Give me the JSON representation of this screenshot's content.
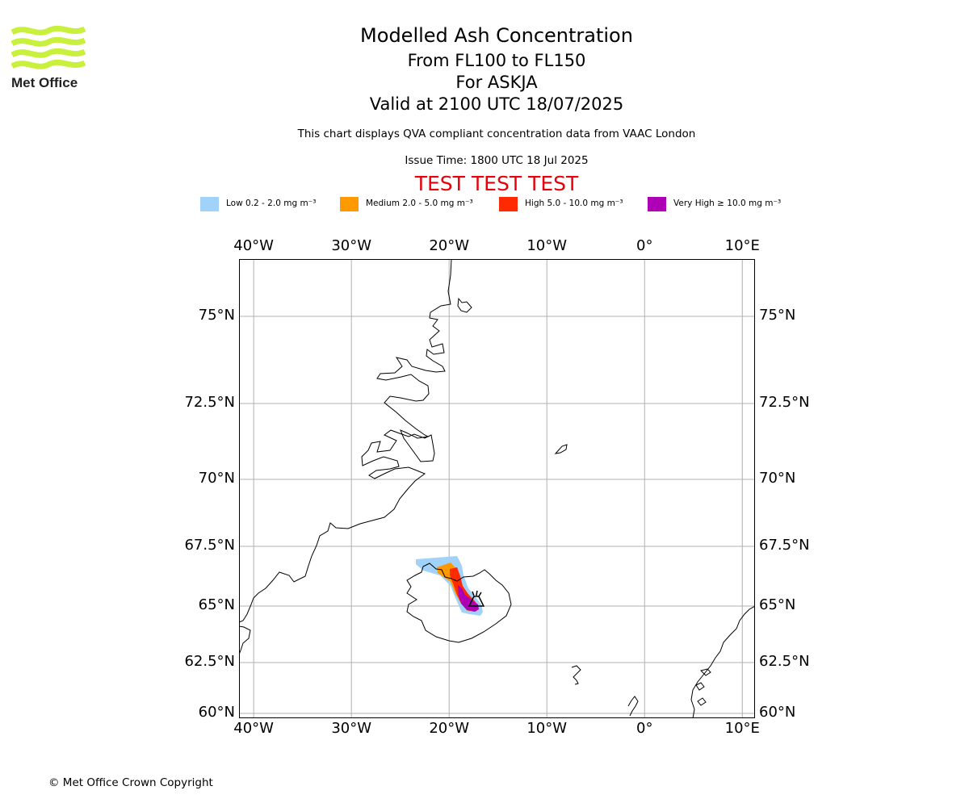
{
  "header": {
    "title": "Modelled Ash Concentration",
    "levels": "From FL100 to FL150",
    "volcano": "For ASKJA",
    "valid": "Valid at 2100 UTC 18/07/2025",
    "compliance_note": "This chart displays QVA compliant concentration data from VAAC London",
    "issue_time": "Issue Time: 1800 UTC 18 Jul 2025",
    "test_banner": "TEST TEST TEST"
  },
  "logo": {
    "text": "Met Office",
    "color": "#c8f03c",
    "icon": "met-office-wave-logo"
  },
  "legend": [
    {
      "label": "Low 0.2 - 2.0 mg m⁻³",
      "color": "#a0d2fa"
    },
    {
      "label": "Medium 2.0 - 5.0 mg m⁻³",
      "color": "#ff9900"
    },
    {
      "label": "High 5.0 - 10.0 mg m⁻³",
      "color": "#ff2a00"
    },
    {
      "label": "Very High  ≥  10.0 mg m⁻³",
      "color": "#ae00b4"
    }
  ],
  "map": {
    "lon_range": [
      -41.5,
      11.3
    ],
    "lat_range": [
      59.9,
      76.9
    ],
    "lon_ticks": [
      {
        "value": -40,
        "label": "40°W"
      },
      {
        "value": -30,
        "label": "30°W"
      },
      {
        "value": -20,
        "label": "20°W"
      },
      {
        "value": -10,
        "label": "10°W"
      },
      {
        "value": 0,
        "label": "0°"
      },
      {
        "value": 10,
        "label": "10°E"
      }
    ],
    "lat_ticks": [
      {
        "value": 75,
        "label": "75°N"
      },
      {
        "value": 72.5,
        "label": "72.5°N"
      },
      {
        "value": 70,
        "label": "70°N"
      },
      {
        "value": 67.5,
        "label": "67.5°N"
      },
      {
        "value": 65,
        "label": "65°N"
      },
      {
        "value": 62.5,
        "label": "62.5°N"
      },
      {
        "value": 60,
        "label": "60°N"
      }
    ],
    "grid": true,
    "volcano_marker": {
      "name": "ASKJA",
      "lon": -16.8,
      "lat": 65.0,
      "icon": "volcano-icon"
    }
  },
  "footer": {
    "copyright": "© Met Office Crown Copyright"
  }
}
